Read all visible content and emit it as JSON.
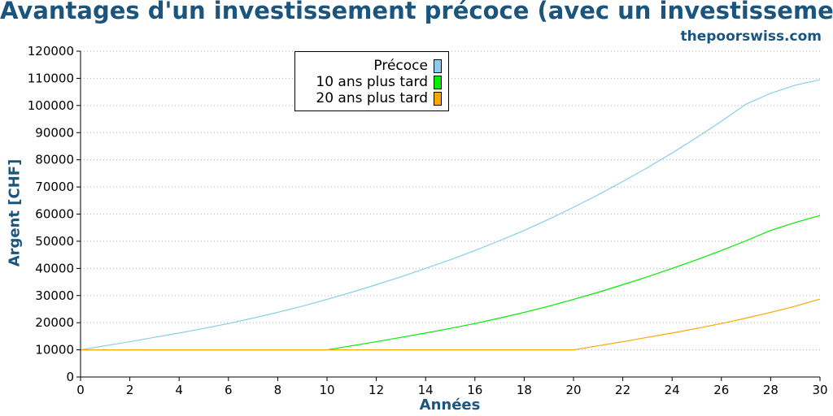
{
  "chart_data": {
    "type": "line",
    "title": "Avantages d'un investissement précoce (avec un investissement max",
    "watermark": "thepoorswiss.com",
    "xlabel": "Années",
    "ylabel": "Argent [CHF]",
    "xlim": [
      0,
      30
    ],
    "ylim": [
      0,
      120000
    ],
    "x_ticks": [
      "0",
      "2",
      "4",
      "6",
      "8",
      "10",
      "12",
      "14",
      "16",
      "18",
      "20",
      "22",
      "24",
      "26",
      "28",
      "30"
    ],
    "y_ticks": [
      "0",
      "10000",
      "20000",
      "30000",
      "40000",
      "50000",
      "60000",
      "70000",
      "80000",
      "90000",
      "100000",
      "110000",
      "120000"
    ],
    "grid": "horizontal dotted",
    "legend_position": "top-left",
    "x": [
      0,
      1,
      2,
      3,
      4,
      5,
      6,
      7,
      8,
      9,
      10,
      11,
      12,
      13,
      14,
      15,
      16,
      17,
      18,
      19,
      20,
      21,
      22,
      23,
      24,
      25,
      26,
      27,
      28,
      29,
      30
    ],
    "series": [
      {
        "name": "Précoce",
        "color": "#87ceeb",
        "values": [
          10000,
          11500,
          13000,
          14600,
          16200,
          17900,
          19700,
          21700,
          23800,
          26100,
          28600,
          31200,
          34000,
          36900,
          40000,
          43200,
          46600,
          50200,
          54000,
          58100,
          62500,
          67100,
          72000,
          77100,
          82500,
          88200,
          94200,
          100500,
          104500,
          107500,
          109500
        ]
      },
      {
        "name": "10 ans plus tard",
        "color": "#00ee00",
        "values": [
          10000,
          10000,
          10000,
          10000,
          10000,
          10000,
          10000,
          10000,
          10000,
          10000,
          10000,
          11500,
          13000,
          14600,
          16200,
          17900,
          19700,
          21700,
          23800,
          26100,
          28600,
          31200,
          34000,
          36900,
          40000,
          43200,
          46600,
          50200,
          54000,
          56900,
          59500
        ]
      },
      {
        "name": "20 ans plus tard",
        "color": "#ffa500",
        "values": [
          10000,
          10000,
          10000,
          10000,
          10000,
          10000,
          10000,
          10000,
          10000,
          10000,
          10000,
          10000,
          10000,
          10000,
          10000,
          10000,
          10000,
          10000,
          10000,
          10000,
          10000,
          11500,
          13000,
          14600,
          16200,
          17900,
          19700,
          21700,
          23800,
          26100,
          28700
        ]
      }
    ]
  }
}
